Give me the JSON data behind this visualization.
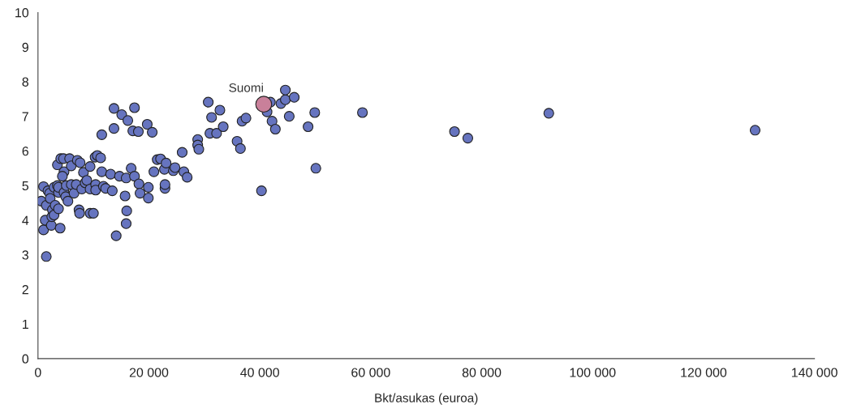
{
  "chart_data": {
    "type": "scatter",
    "xlabel": "Bkt/asukas (euroa)",
    "xlim": [
      0,
      140000
    ],
    "ylim": [
      0,
      10
    ],
    "xticks": [
      0,
      {
        "value": 20000,
        "label": "20 000"
      },
      {
        "value": 40000,
        "label": "40 000"
      },
      {
        "value": 60000,
        "label": "60 000"
      },
      {
        "value": 80000,
        "label": "80 000"
      },
      {
        "value": 100000,
        "label": "100 000"
      },
      {
        "value": 120000,
        "label": "120 000"
      },
      {
        "value": 140000,
        "label": "140 000"
      }
    ],
    "yticks": [
      0,
      1,
      2,
      3,
      4,
      5,
      6,
      7,
      8,
      9,
      10
    ],
    "grid": false,
    "legend": false,
    "marker": "circle",
    "series": [
      {
        "color": "#6674bf",
        "x": [
          600,
          1000,
          1000,
          1500,
          1300,
          1500,
          1800,
          2100,
          2200,
          2400,
          2500,
          2600,
          2900,
          2900,
          3100,
          3500,
          3700,
          3700,
          4000,
          3700,
          3500,
          4100,
          4600,
          4700,
          4400,
          4700,
          5000,
          5100,
          5400,
          5700,
          6000,
          6000,
          6500,
          6900,
          7100,
          7400,
          7500,
          7600,
          7900,
          8200,
          8500,
          8800,
          9400,
          9400,
          9400,
          10000,
          10300,
          10400,
          10400,
          10700,
          11500,
          11500,
          11300,
          11800,
          12200,
          13100,
          13400,
          13700,
          13700,
          14100,
          14700,
          15100,
          15700,
          15900,
          15900,
          16000,
          16200,
          16800,
          17100,
          17400,
          17400,
          18100,
          18200,
          18400,
          19700,
          19900,
          19900,
          20600,
          20900,
          21500,
          22100,
          22800,
          22900,
          22900,
          23100,
          24400,
          24700,
          26000,
          26300,
          26900,
          28800,
          28800,
          29000,
          30700,
          31300,
          31000,
          32200,
          32800,
          33400,
          35900,
          36500,
          36800,
          37500,
          40300,
          41900,
          41300,
          42200,
          42800,
          43800,
          44600,
          44600,
          46200,
          45300,
          48700,
          49900,
          50100,
          58500,
          75100,
          77500,
          92100,
          129300
        ],
        "values": [
          4.55,
          4.97,
          3.72,
          2.95,
          4.0,
          4.43,
          4.85,
          4.78,
          4.63,
          3.85,
          4.1,
          4.3,
          4.95,
          4.15,
          4.43,
          5.0,
          4.8,
          4.33,
          3.77,
          4.95,
          5.6,
          5.78,
          5.78,
          5.4,
          5.27,
          4.8,
          4.68,
          5.0,
          4.55,
          5.78,
          5.57,
          5.03,
          4.78,
          5.03,
          5.73,
          4.3,
          4.2,
          5.66,
          4.9,
          5.38,
          5.08,
          5.15,
          4.9,
          4.2,
          5.55,
          4.2,
          5.82,
          5.03,
          4.87,
          5.87,
          5.4,
          6.47,
          5.8,
          4.98,
          4.92,
          5.33,
          4.85,
          7.23,
          6.65,
          3.55,
          5.27,
          7.05,
          4.7,
          5.22,
          3.9,
          4.27,
          6.88,
          5.5,
          6.58,
          7.25,
          5.27,
          6.56,
          5.05,
          4.78,
          6.77,
          4.64,
          4.95,
          6.54,
          5.4,
          5.75,
          5.77,
          5.47,
          4.92,
          5.03,
          5.65,
          5.43,
          5.52,
          5.96,
          5.4,
          5.24,
          6.33,
          6.17,
          6.05,
          7.41,
          6.97,
          6.51,
          6.51,
          7.18,
          6.7,
          6.28,
          6.07,
          6.86,
          6.95,
          4.85,
          7.41,
          7.13,
          6.86,
          6.63,
          7.37,
          7.48,
          7.76,
          7.55,
          7.0,
          6.7,
          7.11,
          5.5,
          7.11,
          6.56,
          6.37,
          7.09,
          6.6
        ]
      },
      {
        "color": "#c9809a",
        "x": [
          40700
        ],
        "values": [
          7.35
        ]
      }
    ],
    "annotations": [
      {
        "text": "Suomi",
        "x": 40700,
        "y": 7.35
      }
    ]
  }
}
